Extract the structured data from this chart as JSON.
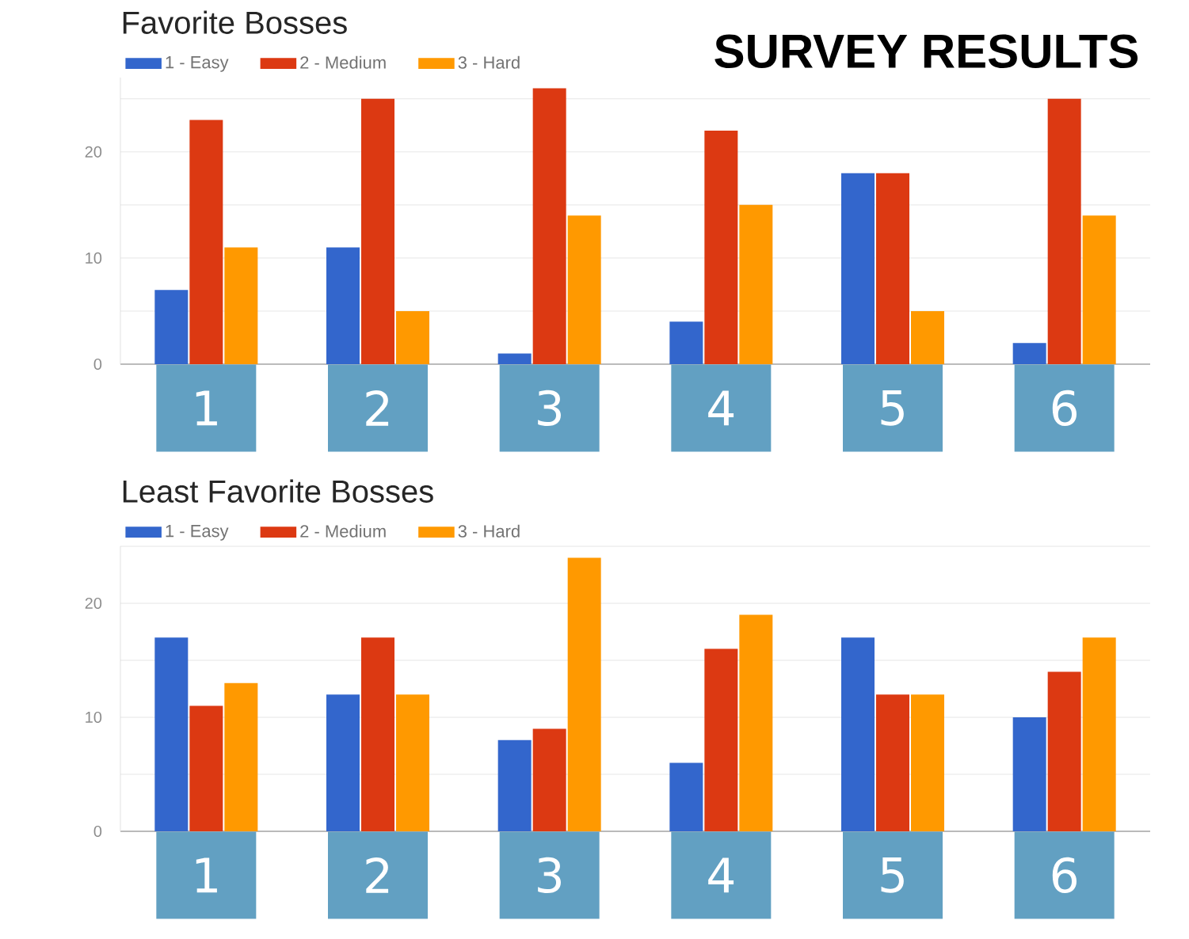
{
  "chart_data": [
    {
      "type": "bar",
      "title": "Favorite Bosses",
      "categories": [
        "1",
        "2",
        "3",
        "4",
        "5",
        "6"
      ],
      "series": [
        {
          "name": "1 - Easy",
          "color": "#3366cc",
          "values": [
            7,
            11,
            1,
            4,
            18,
            2
          ]
        },
        {
          "name": "2 - Medium",
          "color": "#dc3912",
          "values": [
            23,
            25,
            26,
            22,
            18,
            25
          ]
        },
        {
          "name": "3 - Hard",
          "color": "#ff9900",
          "values": [
            11,
            5,
            14,
            15,
            5,
            14
          ]
        }
      ],
      "ylim": [
        0,
        27
      ],
      "yticks": [
        0,
        {
          "value": 5,
          "label": null
        },
        10,
        {
          "value": 15,
          "label": null
        },
        20,
        {
          "value": 25,
          "label": null
        }
      ],
      "grid": "y",
      "legend": "top left",
      "annotations": [
        "SURVEY RESULTS"
      ]
    },
    {
      "type": "bar",
      "title": "Least Favorite Bosses",
      "categories": [
        "1",
        "2",
        "3",
        "4",
        "5",
        "6"
      ],
      "series": [
        {
          "name": "1 - Easy",
          "color": "#3366cc",
          "values": [
            17,
            12,
            8,
            6,
            17,
            10
          ]
        },
        {
          "name": "2 - Medium",
          "color": "#dc3912",
          "values": [
            11,
            17,
            9,
            16,
            12,
            14
          ]
        },
        {
          "name": "3 - Hard",
          "color": "#ff9900",
          "values": [
            13,
            12,
            24,
            19,
            12,
            17
          ]
        }
      ],
      "ylim": [
        0,
        25
      ],
      "yticks": [
        0,
        {
          "value": 5,
          "label": null
        },
        10,
        {
          "value": 15,
          "label": null
        },
        20,
        {
          "value": 25,
          "label": null
        }
      ],
      "grid": "y",
      "legend": "top left"
    }
  ]
}
